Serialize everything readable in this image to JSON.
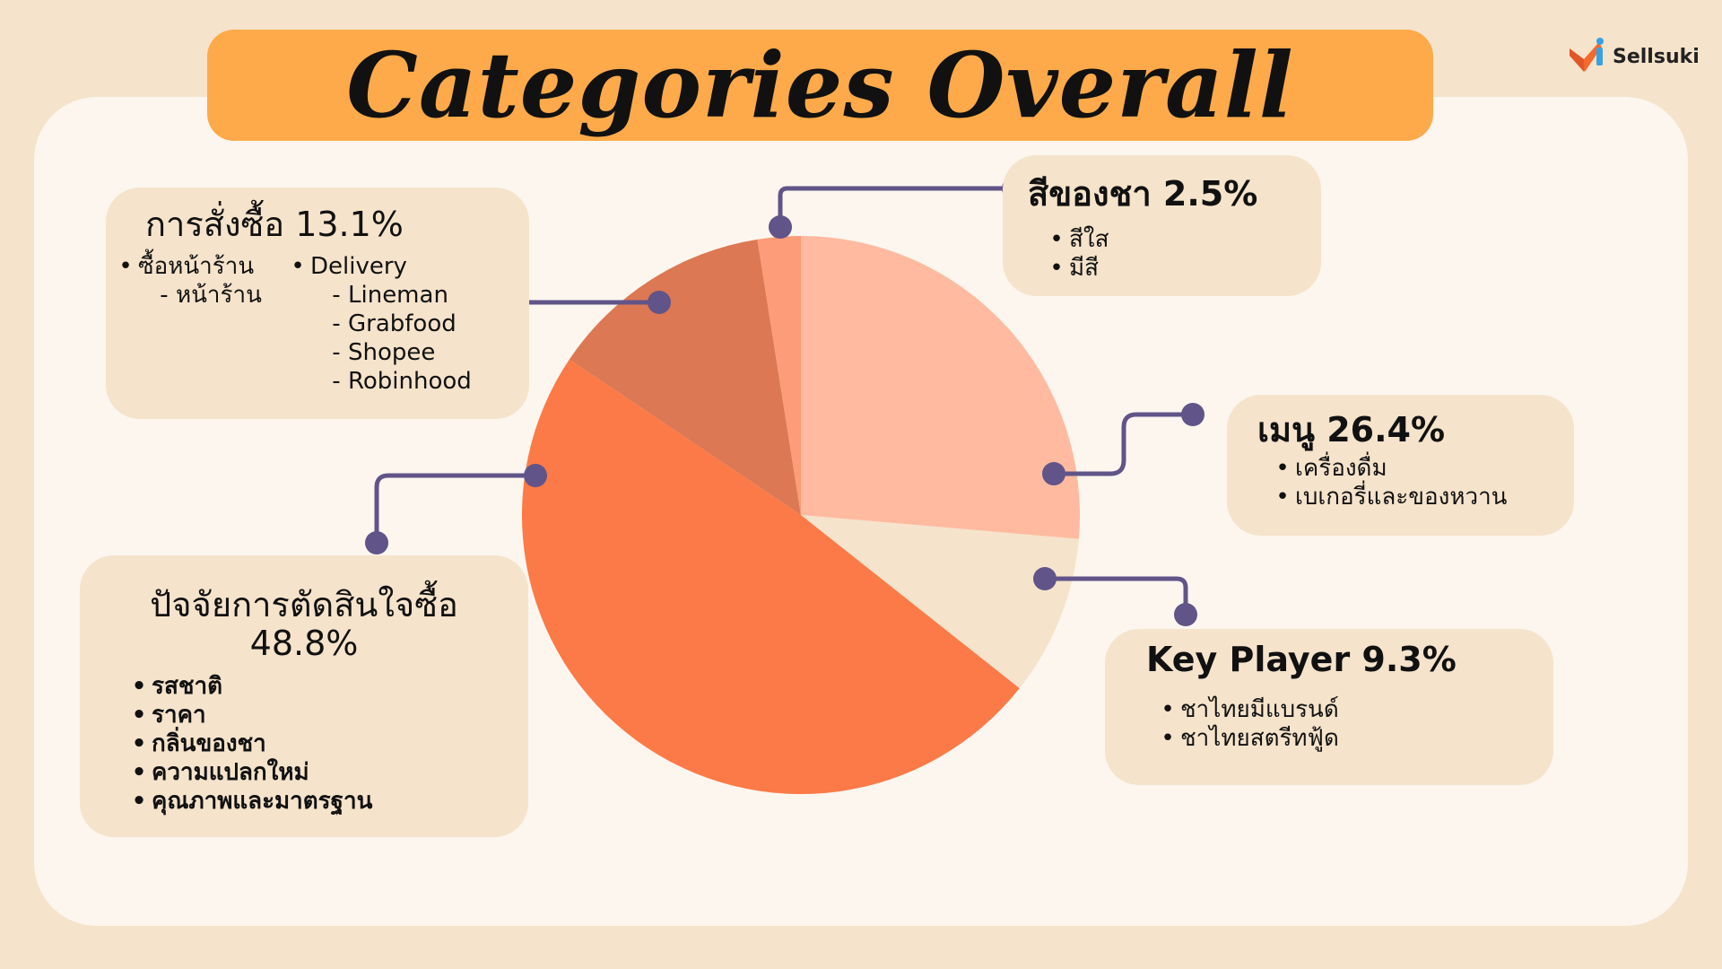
{
  "title": "Categories Overall",
  "brand": "Sellsuki",
  "colors": {
    "background": "#F5E3CB",
    "panel": "#FCF6EF",
    "title_bar": "#FEAA4A",
    "connector": "#615488"
  },
  "chart_data": {
    "type": "pie",
    "title": "Categories Overall",
    "slices": [
      {
        "label": "เมนู",
        "value": 26.4,
        "color": "#FFBAA0"
      },
      {
        "label": "Key Player",
        "value": 9.3,
        "color": "#F5E3CB"
      },
      {
        "label": "ปัจจัยการตัดสินใจซื้อ",
        "value": 48.8,
        "color": "#FC7A47"
      },
      {
        "label": "การสั่งซื้อ",
        "value": 13.1,
        "color": "#DC7853"
      },
      {
        "label": "สีของชา",
        "value": 2.5,
        "color": "#FC9C78"
      }
    ]
  },
  "boxes": {
    "order": {
      "heading": "การสั่งซื้อ 13.1%",
      "col1": [
        {
          "text": "ซื้อหน้าร้าน",
          "sub": false
        },
        {
          "text": "หน้าร้าน",
          "sub": true
        }
      ],
      "col2": [
        {
          "text": "Delivery",
          "sub": false
        },
        {
          "text": "Lineman",
          "sub": true
        },
        {
          "text": "Grabfood",
          "sub": true
        },
        {
          "text": "Shopee",
          "sub": true
        },
        {
          "text": "Robinhood",
          "sub": true
        }
      ]
    },
    "color": {
      "heading": "สีของชา 2.5%",
      "items": [
        "สีใส",
        "มีสี"
      ]
    },
    "menu": {
      "heading": "เมนู 26.4%",
      "items": [
        "เครื่องดื่ม",
        "เบเกอรี่และของหวาน"
      ]
    },
    "keyplayer": {
      "heading": "Key Player 9.3%",
      "items": [
        "ชาไทยมีแบรนด์",
        "ชาไทยสตรีทฟู้ด"
      ]
    },
    "decision": {
      "heading_line1": "ปัจจัยการตัดสินใจซื้อ",
      "heading_line2": "48.8%",
      "items": [
        "รสชาติ",
        "ราคา",
        "กลิ่นของชา",
        "ความแปลกใหม่",
        "คุณภาพและมาตรฐาน"
      ]
    }
  }
}
